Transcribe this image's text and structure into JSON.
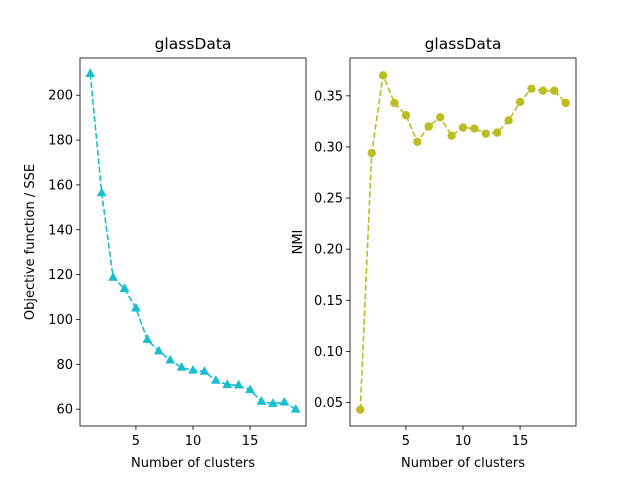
{
  "chart_data": [
    {
      "type": "line",
      "title": "glassData",
      "xlabel": "Number of clusters",
      "ylabel": "Objective function / SSE",
      "xlim": [
        0.1,
        19.9
      ],
      "ylim": [
        52.5,
        216.6
      ],
      "xticks": [
        5,
        10,
        15
      ],
      "yticks": [
        60,
        80,
        100,
        120,
        140,
        160,
        180,
        200
      ],
      "grid": false,
      "series": [
        {
          "color": "#17becf",
          "marker": "triangle",
          "linestyle": "dashed",
          "x": [
            1,
            2,
            3,
            4,
            5,
            6,
            7,
            8,
            9,
            10,
            11,
            12,
            13,
            14,
            15,
            16,
            17,
            18,
            19
          ],
          "values": [
            209.6,
            156.4,
            118.7,
            113.7,
            105.0,
            91.0,
            85.9,
            81.8,
            78.6,
            77.3,
            76.8,
            72.8,
            70.9,
            70.7,
            68.6,
            63.4,
            62.5,
            63.1,
            59.9
          ]
        }
      ]
    },
    {
      "type": "line",
      "title": "glassData",
      "xlabel": "Number of clusters",
      "ylabel": "NMI",
      "xlim": [
        0.1,
        19.9
      ],
      "ylim": [
        0.027,
        0.387
      ],
      "xticks": [
        5,
        10,
        15
      ],
      "yticks": [
        0.05,
        0.1,
        0.15,
        0.2,
        0.25,
        0.3,
        0.35
      ],
      "ytick_labels": [
        "0.05",
        "0.10",
        "0.15",
        "0.20",
        "0.25",
        "0.30",
        "0.35"
      ],
      "grid": false,
      "series": [
        {
          "color": "#bcbd22",
          "marker": "circle",
          "linestyle": "dashed",
          "x": [
            1,
            2,
            3,
            4,
            5,
            6,
            7,
            8,
            9,
            10,
            11,
            12,
            13,
            14,
            15,
            16,
            17,
            18,
            19
          ],
          "values": [
            0.043,
            0.294,
            0.37,
            0.343,
            0.331,
            0.305,
            0.32,
            0.329,
            0.311,
            0.319,
            0.318,
            0.313,
            0.314,
            0.326,
            0.344,
            0.357,
            0.355,
            0.355,
            0.343
          ]
        }
      ]
    }
  ]
}
